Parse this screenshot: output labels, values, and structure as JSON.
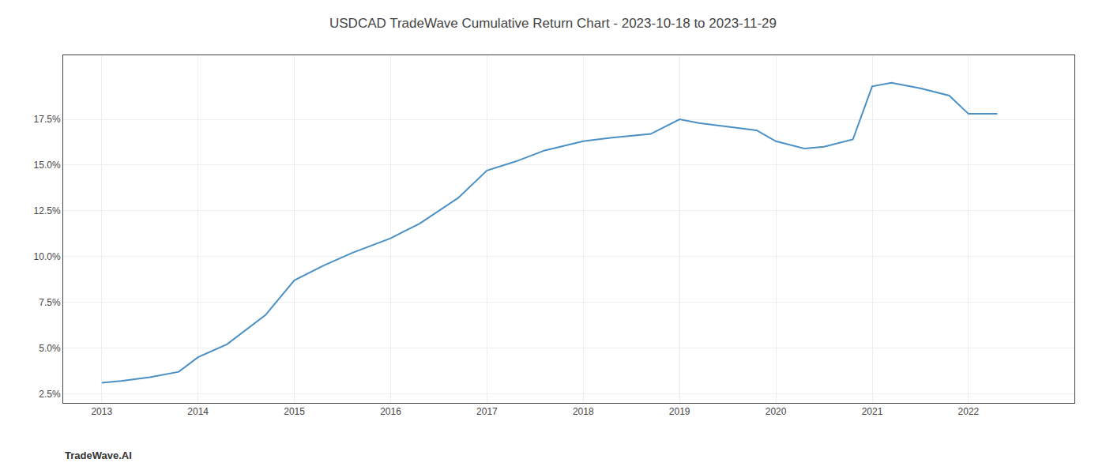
{
  "chart_data": {
    "type": "line",
    "title": "USDCAD TradeWave Cumulative Return Chart - 2023-10-18 to 2023-11-29",
    "annotations": [
      "TradeWave.AI"
    ],
    "x": [
      2013.0,
      2013.2,
      2013.5,
      2013.8,
      2014.0,
      2014.3,
      2014.7,
      2015.0,
      2015.3,
      2015.6,
      2016.0,
      2016.3,
      2016.7,
      2017.0,
      2017.3,
      2017.6,
      2018.0,
      2018.3,
      2018.7,
      2019.0,
      2019.2,
      2019.5,
      2019.8,
      2020.0,
      2020.3,
      2020.5,
      2020.8,
      2021.0,
      2021.2,
      2021.5,
      2021.8,
      2022.0,
      2022.3
    ],
    "values": [
      3.1,
      3.2,
      3.4,
      3.7,
      4.5,
      5.2,
      6.8,
      8.7,
      9.5,
      10.2,
      11.0,
      11.8,
      13.2,
      14.7,
      15.2,
      15.8,
      16.3,
      16.5,
      16.7,
      17.5,
      17.3,
      17.1,
      16.9,
      16.3,
      15.9,
      16.0,
      16.4,
      19.3,
      19.5,
      19.2,
      18.8,
      17.8,
      17.8
    ],
    "color": "#4a90c4",
    "xlim": [
      2012.6,
      2023.1
    ],
    "ylim": [
      2.0,
      21.0
    ],
    "xticks": [
      2013,
      2014,
      2015,
      2016,
      2017,
      2018,
      2019,
      2020,
      2021,
      2022
    ],
    "yticks": [
      {
        "value": 2.5,
        "label": "2.5%"
      },
      {
        "value": 5.0,
        "label": "5.0%"
      },
      {
        "value": 7.5,
        "label": "7.5%"
      },
      {
        "value": 10.0,
        "label": "10.0%"
      },
      {
        "value": 12.5,
        "label": "12.5%"
      },
      {
        "value": 15.0,
        "label": "15.0%"
      },
      {
        "value": 17.5,
        "label": "17.5%"
      }
    ],
    "grid": true
  }
}
